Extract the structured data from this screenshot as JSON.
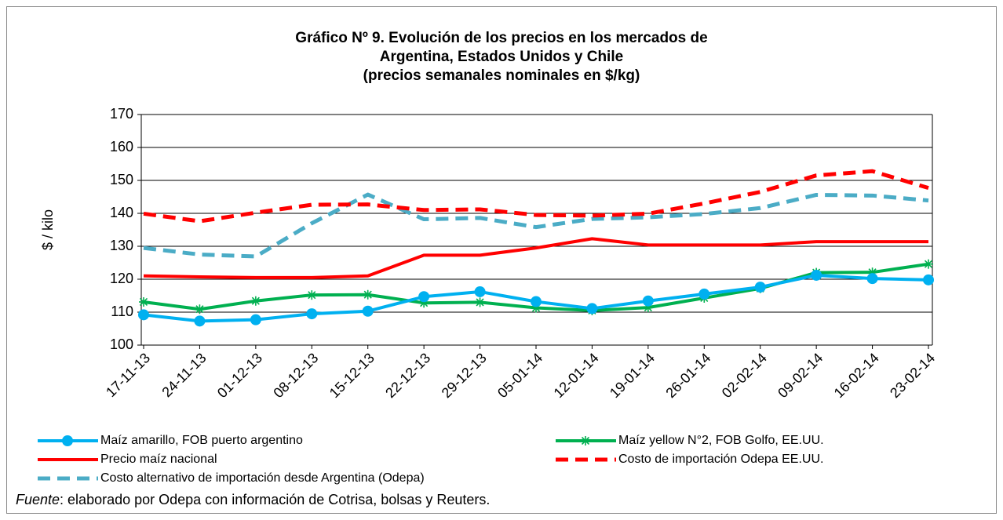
{
  "chart_data": {
    "type": "line",
    "title": [
      "Gráfico Nº 9. Evolución de los precios en los mercados de",
      "Argentina, Estados Unidos y Chile",
      "(precios semanales nominales en $/kg)"
    ],
    "y_label": "$ / kilo",
    "categories": [
      "17-11-13",
      "24-11-13",
      "01-12-13",
      "08-12-13",
      "15-12-13",
      "22-12-13",
      "29-12-13",
      "05-01-14",
      "12-01-14",
      "19-01-14",
      "26-01-14",
      "02-02-14",
      "09-02-14",
      "16-02-14",
      "23-02-14"
    ],
    "ylim": [
      100,
      170
    ],
    "yticks": [
      100,
      110,
      120,
      130,
      140,
      150,
      160,
      170
    ],
    "grid": true,
    "legend": "bottom",
    "series": [
      {
        "name": "Maíz amarillo, FOB puerto argentino",
        "color": "#00b0f0",
        "marker": "circle",
        "dash": "solid",
        "values": [
          109.2,
          107.3,
          107.7,
          109.5,
          110.3,
          114.7,
          116.2,
          113.2,
          111.1,
          113.4,
          115.5,
          117.6,
          121.2,
          120.2,
          119.8
        ]
      },
      {
        "name": "Maíz yellow N°2, FOB Golfo, EE.UU.",
        "color": "#00b050",
        "marker": "star",
        "dash": "solid",
        "values": [
          113.1,
          110.9,
          113.4,
          115.2,
          115.3,
          112.8,
          113.0,
          111.3,
          110.5,
          111.4,
          114.3,
          117.2,
          122.0,
          122.1,
          124.6
        ]
      },
      {
        "name": "Precio maíz nacional",
        "color": "#ff0000",
        "marker": "none",
        "dash": "solid",
        "values": [
          121.0,
          120.7,
          120.5,
          120.5,
          121.0,
          127.3,
          127.3,
          129.5,
          132.3,
          130.4,
          130.4,
          130.4,
          131.4,
          131.4,
          131.4
        ]
      },
      {
        "name": "Costo de importación Odepa EE.UU.",
        "color": "#ff0000",
        "marker": "none",
        "dash": "dashed",
        "values": [
          139.9,
          137.6,
          140.2,
          142.6,
          142.7,
          141.0,
          141.2,
          139.5,
          139.3,
          139.9,
          143.0,
          146.5,
          151.5,
          152.8,
          147.7
        ]
      },
      {
        "name": "Costo alternativo de importación desde Argentina (Odepa)",
        "color": "#4bacc6",
        "marker": "none",
        "dash": "dashed",
        "values": [
          129.5,
          127.5,
          126.9,
          137.0,
          145.7,
          138.2,
          138.6,
          135.8,
          138.3,
          138.8,
          139.8,
          141.6,
          145.6,
          145.4,
          143.9
        ]
      }
    ],
    "source_label": "Fuente",
    "source_text": ": elaborado por Odepa con información de Cotrisa, bolsas y Reuters."
  }
}
